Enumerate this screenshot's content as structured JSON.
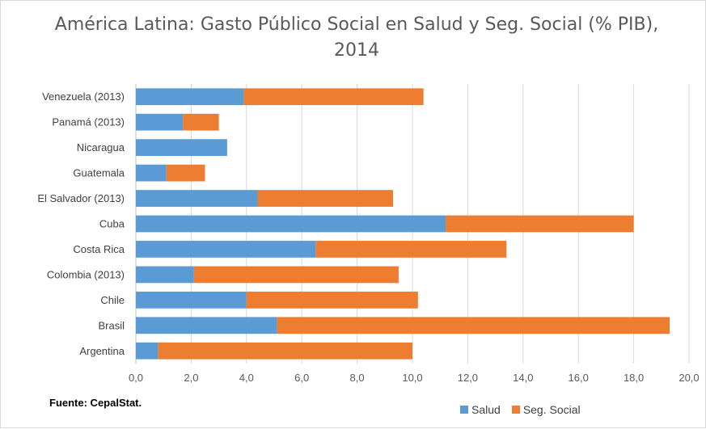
{
  "chart_data": {
    "type": "bar",
    "orientation": "horizontal",
    "stacked": true,
    "title": "América Latina: Gasto Público Social en Salud y Seg. Social (% PIB), 2014",
    "source": "Fuente: CepalStat.",
    "categories": [
      "Venezuela (2013)",
      "Panamá (2013)",
      "Nicaragua",
      "Guatemala",
      "El Salvador (2013)",
      "Cuba",
      "Costa Rica",
      "Colombia (2013)",
      "Chile",
      "Brasil",
      "Argentina"
    ],
    "series": [
      {
        "name": "Salud",
        "color": "#5b9bd5",
        "values": [
          3.9,
          1.7,
          3.3,
          1.1,
          4.4,
          11.2,
          6.5,
          2.1,
          4.0,
          5.1,
          0.8
        ]
      },
      {
        "name": "Seg. Social",
        "color": "#ed7d31",
        "values": [
          6.5,
          1.3,
          0.0,
          1.4,
          4.9,
          6.8,
          6.9,
          7.4,
          6.2,
          14.2,
          9.2
        ]
      }
    ],
    "xlim": [
      0,
      20
    ],
    "xticks": [
      "0,0",
      "2,0",
      "4,0",
      "6,0",
      "8,0",
      "10,0",
      "12,0",
      "14,0",
      "16,0",
      "18,0",
      "20,0"
    ],
    "grid": true,
    "legend_position": "bottom-right"
  }
}
